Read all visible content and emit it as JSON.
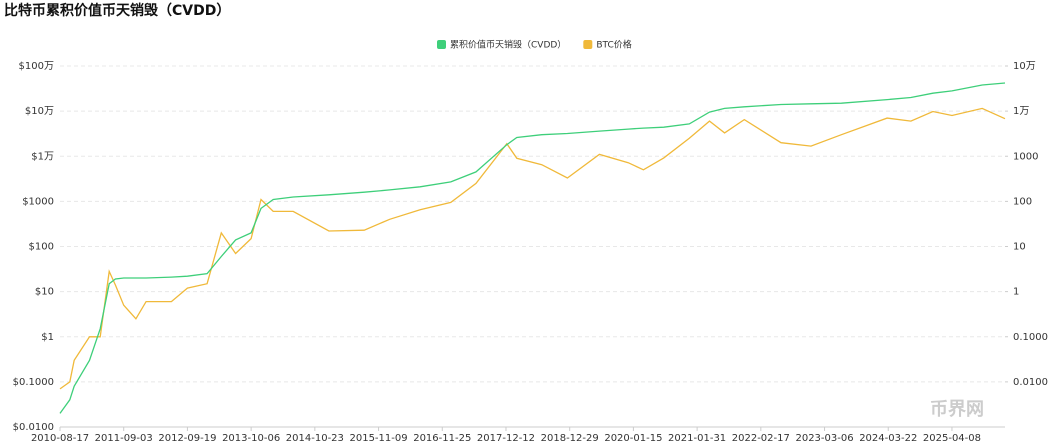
{
  "chart_data": {
    "type": "line",
    "title": "比特币累积价值币天销毁（CVDD）",
    "watermark": "币界网",
    "log_scale": true,
    "grid": true,
    "legend": "top",
    "x": [
      "2010-08-17",
      "2010-10-15",
      "2010-11-10",
      "2011-02-10",
      "2011-04-15",
      "2011-06-08",
      "2011-07-15",
      "2011-09-03",
      "2011-11-15",
      "2012-01-15",
      "2012-06-15",
      "2012-09-19",
      "2013-01-15",
      "2013-04-10",
      "2013-07-05",
      "2013-10-06",
      "2013-12-04",
      "2014-02-15",
      "2014-06-15",
      "2015-01-15",
      "2015-08-15",
      "2016-01-15",
      "2016-07-15",
      "2017-01-15",
      "2017-06-15",
      "2017-12-17",
      "2018-02-15",
      "2018-07-15",
      "2018-12-15",
      "2019-06-25",
      "2019-12-15",
      "2020-03-15",
      "2020-07-15",
      "2020-12-15",
      "2021-04-15",
      "2021-07-15",
      "2021-11-10",
      "2022-06-18",
      "2022-12-15",
      "2023-06-15",
      "2024-03-15",
      "2024-08-05",
      "2024-12-15",
      "2025-04-08",
      "2025-10-06",
      "2026-02-20"
    ],
    "xlim": [
      "2010-08-17",
      "2026-02-20"
    ],
    "xticks": [
      "2010-08-17",
      "2011-09-03",
      "2012-09-19",
      "2013-10-06",
      "2014-10-23",
      "2015-11-09",
      "2016-11-25",
      "2017-12-12",
      "2018-12-29",
      "2020-01-15",
      "2021-01-31",
      "2022-02-17",
      "2023-03-06",
      "2024-03-22",
      "2025-04-08"
    ],
    "ylim": [
      0.01,
      1000000
    ],
    "yticks": [
      {
        "value": 0.01,
        "label": "$0.0100"
      },
      {
        "value": 0.1,
        "label": "$0.1000"
      },
      {
        "value": 1,
        "label": "$1"
      },
      {
        "value": 10,
        "label": "$10"
      },
      {
        "value": 100,
        "label": "$100"
      },
      {
        "value": 1000,
        "label": "$1000"
      },
      {
        "value": 10000,
        "label": "$1万"
      },
      {
        "value": 100000,
        "label": "$10万"
      },
      {
        "value": 1000000,
        "label": "$100万"
      }
    ],
    "y2lim": [
      0.001,
      100000
    ],
    "y2ticks": [
      {
        "value": 0.01,
        "label": "0.0100"
      },
      {
        "value": 0.1,
        "label": "0.1000"
      },
      1,
      10,
      100,
      1000,
      {
        "value": 10000,
        "label": "1万"
      },
      {
        "value": 100000,
        "label": "10万"
      }
    ],
    "series": [
      {
        "name": "累积价值币天销毁（CVDD）",
        "color": "#3ecf7a",
        "values": [
          0.02,
          0.04,
          0.08,
          0.3,
          1.5,
          15,
          19,
          20,
          20,
          20,
          21,
          22,
          25,
          60,
          140,
          200,
          700,
          1100,
          1250,
          1400,
          1600,
          1800,
          2100,
          2700,
          4500,
          18000,
          26000,
          30000,
          32000,
          36000,
          40000,
          42000,
          44000,
          52000,
          95000,
          115000,
          125000,
          140000,
          145000,
          150000,
          180000,
          200000,
          250000,
          280000,
          380000,
          420000
        ]
      },
      {
        "name": "BTC价格",
        "color": "#f0b93a",
        "values": [
          0.07,
          0.1,
          0.3,
          1,
          1,
          28,
          14,
          5,
          2.5,
          6,
          6,
          12,
          15,
          200,
          70,
          150,
          1100,
          600,
          600,
          220,
          230,
          400,
          650,
          950,
          2500,
          19000,
          9000,
          6500,
          3300,
          11000,
          7200,
          5000,
          9200,
          25000,
          60000,
          33000,
          65000,
          20000,
          16800,
          30000,
          70000,
          60000,
          98000,
          80000,
          115000,
          68000
        ]
      }
    ]
  }
}
